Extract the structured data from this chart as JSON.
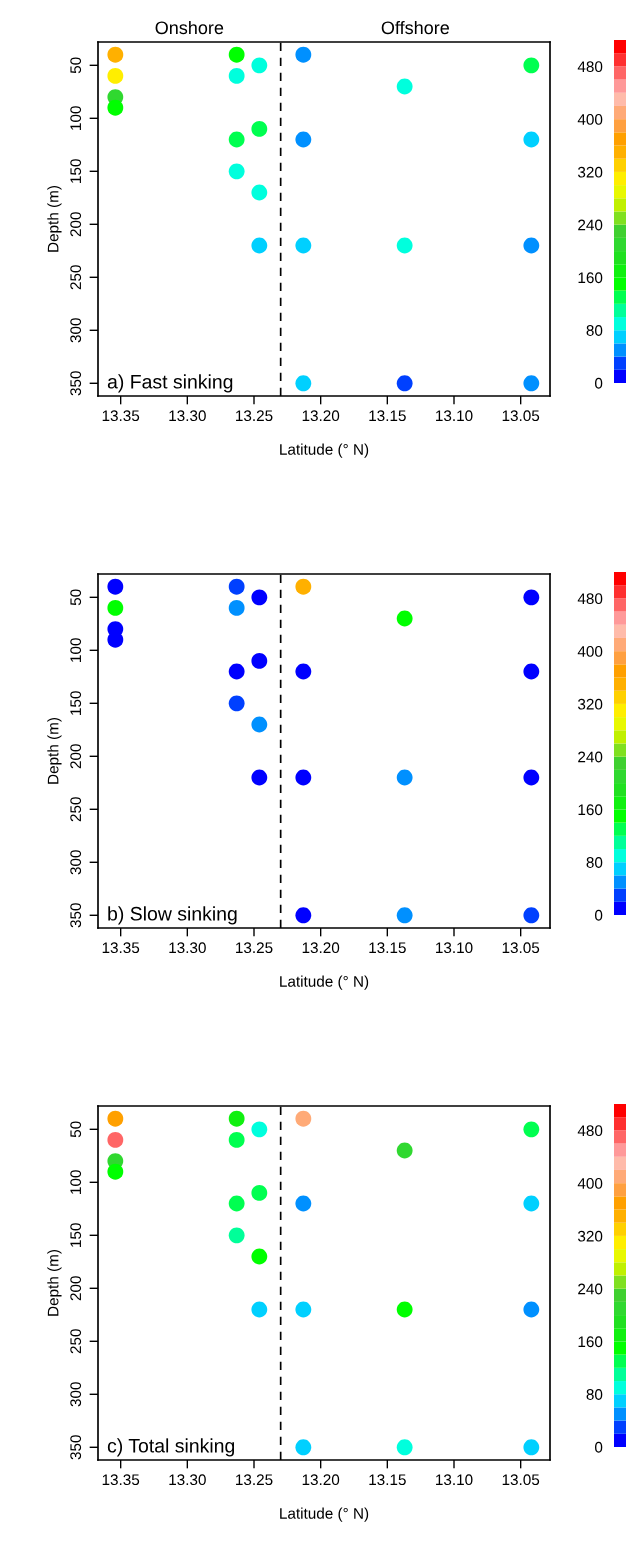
{
  "chart_data": [
    {
      "type": "scatter",
      "title": "a) Fast sinking",
      "xlabel": "Latitude (° N)",
      "ylabel": "Depth (m)",
      "annotations": [
        "Onshore",
        "Offshore"
      ],
      "x": [
        13.354,
        13.354,
        13.354,
        13.354,
        13.263,
        13.263,
        13.263,
        13.263,
        13.246,
        13.246,
        13.246,
        13.246,
        13.213,
        13.213,
        13.213,
        13.213,
        13.137,
        13.137,
        13.137,
        13.042,
        13.042,
        13.042,
        13.042
      ],
      "values": [
        40,
        60,
        80,
        90,
        40,
        60,
        120,
        150,
        50,
        110,
        170,
        220,
        40,
        120,
        220,
        350,
        70,
        220,
        350,
        50,
        120,
        220,
        350
      ],
      "cvalues": [
        350,
        310,
        210,
        150,
        150,
        90,
        130,
        90,
        90,
        130,
        90,
        70,
        50,
        50,
        70,
        70,
        90,
        90,
        30,
        130,
        70,
        50,
        50
      ],
      "xlim": [
        13.367,
        13.028
      ],
      "ylim": [
        362,
        28
      ],
      "xticks": [
        {
          "value": 13.35,
          "label": "13.35"
        },
        {
          "value": 13.3,
          "label": "13.30"
        },
        {
          "value": 13.25,
          "label": "13.25"
        },
        {
          "value": 13.2,
          "label": "13.20"
        },
        {
          "value": 13.15,
          "label": "13.15"
        },
        {
          "value": 13.1,
          "label": "13.10"
        },
        {
          "value": 13.05,
          "label": "13.05"
        }
      ],
      "yticks": [
        50,
        100,
        150,
        200,
        250,
        300,
        350
      ],
      "clim": [
        0,
        520
      ],
      "cticks": [
        0,
        80,
        160,
        240,
        320,
        400,
        480
      ],
      "ref_lines": [
        {
          "axis": "x",
          "value": 13.23,
          "line_style": "dashed",
          "color": "#000000"
        }
      ],
      "marker": "circle",
      "grid": false,
      "legend": false
    },
    {
      "type": "scatter",
      "title": "b) Slow sinking",
      "xlabel": "Latitude (° N)",
      "ylabel": "Depth (m)",
      "x": [
        13.354,
        13.354,
        13.354,
        13.354,
        13.263,
        13.263,
        13.263,
        13.263,
        13.246,
        13.246,
        13.246,
        13.246,
        13.213,
        13.213,
        13.213,
        13.213,
        13.137,
        13.137,
        13.137,
        13.042,
        13.042,
        13.042,
        13.042
      ],
      "values": [
        40,
        60,
        80,
        90,
        40,
        60,
        120,
        150,
        50,
        110,
        170,
        220,
        40,
        120,
        220,
        350,
        70,
        220,
        350,
        50,
        120,
        220,
        350
      ],
      "cvalues": [
        10,
        150,
        10,
        10,
        30,
        50,
        10,
        30,
        10,
        10,
        50,
        10,
        350,
        10,
        10,
        10,
        150,
        50,
        50,
        10,
        10,
        10,
        30
      ],
      "xlim": [
        13.367,
        13.028
      ],
      "ylim": [
        362,
        28
      ],
      "xticks": [
        {
          "value": 13.35,
          "label": "13.35"
        },
        {
          "value": 13.3,
          "label": "13.30"
        },
        {
          "value": 13.25,
          "label": "13.25"
        },
        {
          "value": 13.2,
          "label": "13.20"
        },
        {
          "value": 13.15,
          "label": "13.15"
        },
        {
          "value": 13.1,
          "label": "13.10"
        },
        {
          "value": 13.05,
          "label": "13.05"
        }
      ],
      "yticks": [
        50,
        100,
        150,
        200,
        250,
        300,
        350
      ],
      "clim": [
        0,
        520
      ],
      "cticks": [
        0,
        80,
        160,
        240,
        320,
        400,
        480
      ],
      "ref_lines": [
        {
          "axis": "x",
          "value": 13.23,
          "line_style": "dashed",
          "color": "#000000"
        }
      ],
      "marker": "circle",
      "grid": false,
      "legend": false
    },
    {
      "type": "scatter",
      "title": "c) Total sinking",
      "xlabel": "Latitude (° N)",
      "ylabel": "Depth (m)",
      "x": [
        13.354,
        13.354,
        13.354,
        13.354,
        13.263,
        13.263,
        13.263,
        13.263,
        13.246,
        13.246,
        13.246,
        13.246,
        13.213,
        13.213,
        13.213,
        13.213,
        13.137,
        13.137,
        13.137,
        13.042,
        13.042,
        13.042,
        13.042
      ],
      "values": [
        40,
        60,
        80,
        90,
        40,
        60,
        120,
        150,
        50,
        110,
        170,
        220,
        40,
        120,
        220,
        350,
        70,
        220,
        350,
        50,
        120,
        220,
        350
      ],
      "cvalues": [
        370,
        470,
        210,
        150,
        170,
        130,
        130,
        110,
        90,
        130,
        150,
        70,
        410,
        50,
        70,
        70,
        210,
        150,
        90,
        130,
        70,
        50,
        70
      ],
      "xlim": [
        13.367,
        13.028
      ],
      "ylim": [
        362,
        28
      ],
      "xticks": [
        {
          "value": 13.35,
          "label": "13.35"
        },
        {
          "value": 13.3,
          "label": "13.30"
        },
        {
          "value": 13.25,
          "label": "13.25"
        },
        {
          "value": 13.2,
          "label": "13.20"
        },
        {
          "value": 13.15,
          "label": "13.15"
        },
        {
          "value": 13.1,
          "label": "13.10"
        },
        {
          "value": 13.05,
          "label": "13.05"
        }
      ],
      "yticks": [
        50,
        100,
        150,
        200,
        250,
        300,
        350
      ],
      "clim": [
        0,
        520
      ],
      "cticks": [
        0,
        80,
        160,
        240,
        320,
        400,
        480
      ],
      "ref_lines": [
        {
          "axis": "x",
          "value": 13.23,
          "line_style": "dashed",
          "color": "#000000"
        }
      ],
      "marker": "circle",
      "grid": false,
      "legend": false
    }
  ]
}
